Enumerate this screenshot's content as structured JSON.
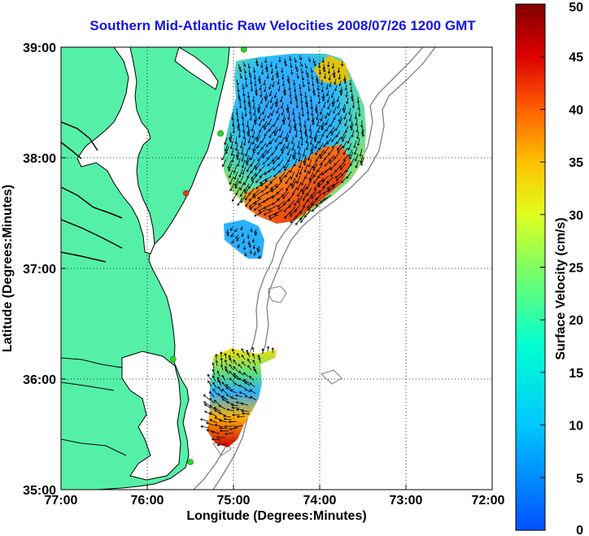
{
  "title": "Southern Mid-Atlantic Raw Velocities 2008/07/26 1200 GMT",
  "x_axis": {
    "label": "Longitude (Degrees:Minutes)",
    "ticks": [
      "77:00",
      "76:00",
      "75:00",
      "74:00",
      "73:00",
      "72:00"
    ]
  },
  "y_axis": {
    "label": "Latitude (Degrees:Minutes)",
    "ticks": [
      "39:00",
      "38:00",
      "37:00",
      "36:00",
      "35:00"
    ]
  },
  "colorbar": {
    "label": "Surface Velocity (cm/s)",
    "ticks": [
      "50",
      "45",
      "40",
      "35",
      "30",
      "25",
      "20",
      "15",
      "10",
      "5",
      "0"
    ],
    "min": 0,
    "max": 50
  },
  "map_data": {
    "lon_range": [
      -77,
      -72
    ],
    "lat_range": [
      35,
      39
    ],
    "grid": "dotted",
    "colors": {
      "land": "#55f0a8",
      "water": "#ffffff",
      "coast": "#000000",
      "bathymetry": "#7f7f7f",
      "station": "#22dd22",
      "station_offline": "#ee3322",
      "title": "#1414e6"
    },
    "stations": [
      {
        "lon": -74.88,
        "lat": 38.98,
        "status": "active"
      },
      {
        "lon": -75.15,
        "lat": 38.22,
        "status": "active"
      },
      {
        "lon": -75.55,
        "lat": 37.68,
        "status": "offline"
      },
      {
        "lon": -75.7,
        "lat": 36.18,
        "status": "active"
      },
      {
        "lon": -75.5,
        "lat": 35.25,
        "status": "active"
      }
    ]
  }
}
